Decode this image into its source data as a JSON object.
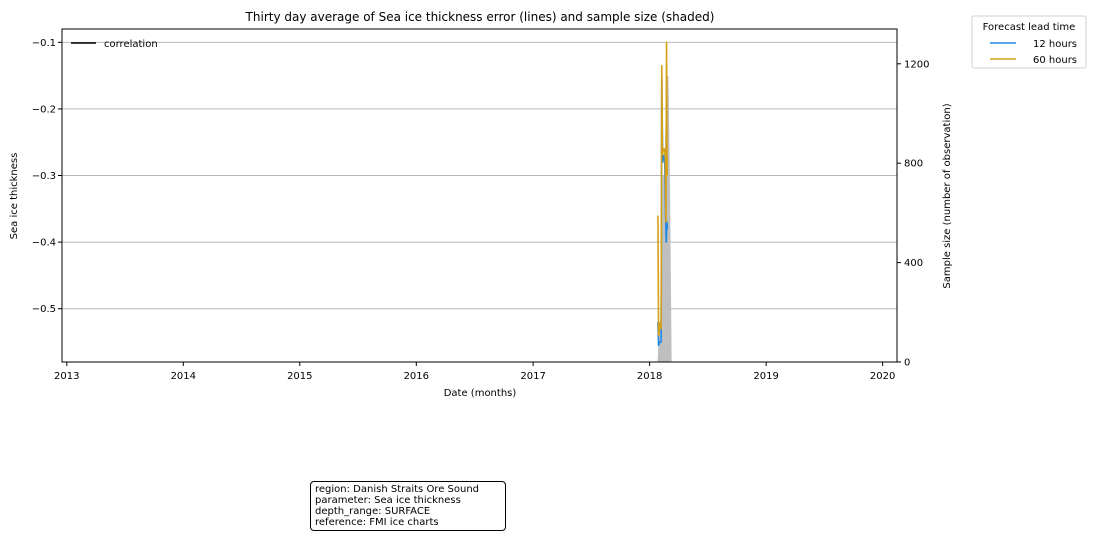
{
  "chart_data": {
    "type": "line",
    "title": "Thirty day average of Sea ice thickness error (lines) and sample size (shaded)",
    "xlabel": "Date (months)",
    "ylabel": "Sea ice thickness",
    "y2label": "Sample size (number of observation)",
    "xlim": [
      "2012-12-17",
      "2020-02-15"
    ],
    "ylim": [
      -0.58,
      -0.08
    ],
    "y2lim": [
      0,
      1340
    ],
    "x_ticks": [
      "2013",
      "2014",
      "2015",
      "2016",
      "2017",
      "2018",
      "2019",
      "2020"
    ],
    "y_ticks": [
      "-0.1",
      "-0.2",
      "-0.3",
      "-0.4",
      "-0.5"
    ],
    "y2_ticks": [
      "0",
      "400",
      "800",
      "1200"
    ],
    "grid": "horizontal",
    "legend_main": {
      "position": "upper-left",
      "entries": [
        "correlation"
      ]
    },
    "legend_lead": {
      "title": "Forecast lead time",
      "position": "outside-top-right",
      "entries": [
        "12 hours",
        "60 hours"
      ]
    },
    "colors": {
      "12 hours": "#1e88e5",
      "60 hours": "#d4a017",
      "correlation": "#000000",
      "sample": "#bfbfbf"
    },
    "sample_size": [
      {
        "x": "2018-01-26",
        "y": 0
      },
      {
        "x": "2018-01-31",
        "y": 160
      },
      {
        "x": "2018-02-06",
        "y": 160
      },
      {
        "x": "2018-02-11",
        "y": 750
      },
      {
        "x": "2018-02-17",
        "y": 750
      },
      {
        "x": "2018-02-22",
        "y": 1150
      },
      {
        "x": "2018-03-01",
        "y": 1150
      },
      {
        "x": "2018-03-06",
        "y": 700
      },
      {
        "x": "2018-03-11",
        "y": 0
      }
    ],
    "series": [
      {
        "name": "12 hours",
        "points": [
          {
            "x": "2018-01-27",
            "y": -0.52
          },
          {
            "x": "2018-01-29",
            "y": -0.555
          },
          {
            "x": "2018-02-02",
            "y": -0.55
          },
          {
            "x": "2018-02-06",
            "y": -0.55
          },
          {
            "x": "2018-02-08",
            "y": -0.15
          },
          {
            "x": "2018-02-11",
            "y": -0.28
          },
          {
            "x": "2018-02-14",
            "y": -0.27
          },
          {
            "x": "2018-02-17",
            "y": -0.27
          },
          {
            "x": "2018-02-20",
            "y": -0.36
          },
          {
            "x": "2018-02-22",
            "y": -0.4
          },
          {
            "x": "2018-02-24",
            "y": -0.37
          },
          {
            "x": "2018-02-26",
            "y": -0.38
          }
        ]
      },
      {
        "name": "60 hours",
        "points": [
          {
            "x": "2018-01-27",
            "y": -0.36
          },
          {
            "x": "2018-01-29",
            "y": -0.54
          },
          {
            "x": "2018-02-01",
            "y": -0.53
          },
          {
            "x": "2018-02-04",
            "y": -0.52
          },
          {
            "x": "2018-02-06",
            "y": -0.53
          },
          {
            "x": "2018-02-08",
            "y": -0.135
          },
          {
            "x": "2018-02-10",
            "y": -0.27
          },
          {
            "x": "2018-02-13",
            "y": -0.26
          },
          {
            "x": "2018-02-16",
            "y": -0.26
          },
          {
            "x": "2018-02-19",
            "y": -0.27
          },
          {
            "x": "2018-02-21",
            "y": -0.37
          },
          {
            "x": "2018-02-23",
            "y": -0.1
          },
          {
            "x": "2018-02-25",
            "y": -0.3
          }
        ]
      }
    ]
  },
  "infobox": {
    "region": "region: Danish Straits Ore Sound",
    "parameter": "parameter: Sea ice thickness",
    "depth_range": "depth_range: SURFACE",
    "reference": "reference: FMI ice charts"
  }
}
